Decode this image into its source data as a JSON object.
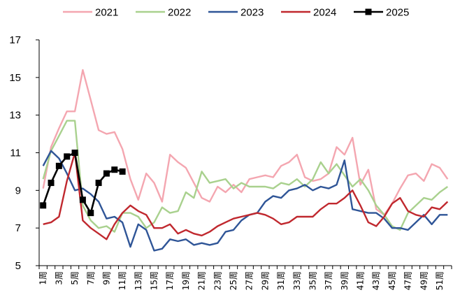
{
  "chart_data": {
    "type": "line",
    "ylim": [
      5,
      17
    ],
    "yticks": [
      5,
      7,
      9,
      11,
      13,
      15,
      17
    ],
    "legend_position": "top",
    "grid": false,
    "xlabels": [
      "1周",
      "3周",
      "5周",
      "7周",
      "9周",
      "11周",
      "13周",
      "15周",
      "17周",
      "19周",
      "21周",
      "23周",
      "25周",
      "27周",
      "29周",
      "31周",
      "33周",
      "35周",
      "37周",
      "39周",
      "41周",
      "43周",
      "45周",
      "47周",
      "49周",
      "51周"
    ],
    "series": [
      {
        "name": "2021",
        "color": "#F4A6B0",
        "marker": "none",
        "values": [
          9.1,
          11.3,
          12.3,
          13.2,
          13.2,
          15.4,
          13.8,
          12.2,
          12.0,
          12.1,
          11.2,
          9.6,
          8.5,
          9.9,
          9.4,
          8.4,
          10.9,
          10.5,
          10.2,
          9.4,
          8.6,
          8.4,
          9.2,
          8.9,
          9.3,
          8.9,
          9.6,
          9.7,
          9.8,
          9.7,
          10.3,
          10.5,
          10.9,
          9.7,
          9.5,
          9.6,
          9.9,
          11.3,
          10.9,
          11.8,
          9.3,
          10.1,
          8.0,
          7.7,
          8.3,
          9.1,
          9.8,
          9.9,
          9.5,
          10.4,
          10.2,
          9.6
        ]
      },
      {
        "name": "2022",
        "color": "#A9D18E",
        "marker": "none",
        "values": [
          9.6,
          11.1,
          11.9,
          12.7,
          12.7,
          8.2,
          7.4,
          7.0,
          7.1,
          6.8,
          7.8,
          7.8,
          7.6,
          7.0,
          7.3,
          8.1,
          7.8,
          7.9,
          8.9,
          8.6,
          10.0,
          9.4,
          9.5,
          9.6,
          9.1,
          9.4,
          9.2,
          9.2,
          9.2,
          9.1,
          9.4,
          9.3,
          9.6,
          9.2,
          9.6,
          10.5,
          9.9,
          10.4,
          9.8,
          9.2,
          9.6,
          9.0,
          8.2,
          7.7,
          7.1,
          6.9,
          7.8,
          8.2,
          8.6,
          8.5,
          8.9,
          9.2
        ]
      },
      {
        "name": "2023",
        "color": "#2F5597",
        "marker": "none",
        "values": [
          10.3,
          11.1,
          10.7,
          9.9,
          9.0,
          9.1,
          8.8,
          8.4,
          7.5,
          7.6,
          7.3,
          6.0,
          7.2,
          6.9,
          5.8,
          5.9,
          6.4,
          6.3,
          6.4,
          6.1,
          6.2,
          6.1,
          6.2,
          6.8,
          6.9,
          7.4,
          7.7,
          7.8,
          8.4,
          8.7,
          8.6,
          9.0,
          9.1,
          9.3,
          9.0,
          9.2,
          9.1,
          9.3,
          10.6,
          8.0,
          7.9,
          7.8,
          7.8,
          7.5,
          7.0,
          7.0,
          6.9,
          7.3,
          7.7,
          7.2,
          7.7,
          7.7
        ]
      },
      {
        "name": "2024",
        "color": "#C0282E",
        "marker": "none",
        "values": [
          7.2,
          7.3,
          7.6,
          9.5,
          11.0,
          7.4,
          7.0,
          6.7,
          6.4,
          7.2,
          7.8,
          8.2,
          7.9,
          7.7,
          7.0,
          7.0,
          7.2,
          6.7,
          6.9,
          6.7,
          6.6,
          6.8,
          7.1,
          7.3,
          7.5,
          7.6,
          7.7,
          7.8,
          7.7,
          7.5,
          7.2,
          7.3,
          7.6,
          7.6,
          7.6,
          8.0,
          8.3,
          8.3,
          8.6,
          9.0,
          8.2,
          7.3,
          7.1,
          7.6,
          8.3,
          8.6,
          7.9,
          7.7,
          7.6,
          8.1,
          8.0,
          8.4
        ]
      },
      {
        "name": "2025",
        "color": "#000000",
        "marker": "square",
        "values": [
          8.2,
          9.4,
          10.3,
          10.8,
          11.0,
          8.5,
          7.8,
          9.4,
          9.9,
          10.1,
          10.0
        ]
      }
    ]
  }
}
